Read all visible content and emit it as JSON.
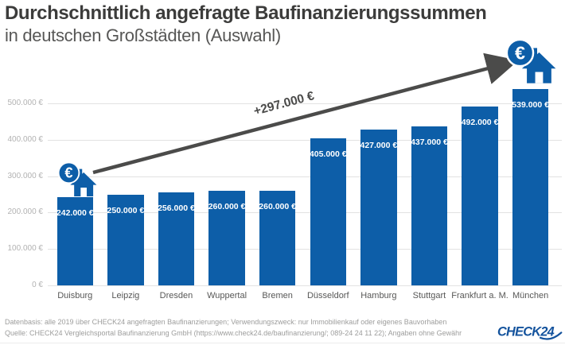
{
  "header": {
    "title": "Durchschnittlich angefragte Baufinanzierungssummen",
    "subtitle": "in deutschen Großstädten (Auswahl)"
  },
  "annotation": {
    "delta_label": "+297.000 €"
  },
  "chart_data": {
    "type": "bar",
    "title": "Durchschnittlich angefragte Baufinanzierungssummen in deutschen Großstädten (Auswahl)",
    "categories": [
      "Duisburg",
      "Leipzig",
      "Dresden",
      "Wuppertal",
      "Bremen",
      "Düsseldorf",
      "Hamburg",
      "Stuttgart",
      "Frankfurt a. M.",
      "München"
    ],
    "values": [
      242000,
      250000,
      256000,
      260000,
      260000,
      405000,
      427000,
      437000,
      492000,
      539000
    ],
    "value_labels": [
      "242.000 €",
      "250.000 €",
      "256.000 €",
      "260.000 €",
      "260.000 €",
      "405.000 €",
      "427.000 €",
      "437.000 €",
      "492.000 €",
      "539.000 €"
    ],
    "y_ticks": [
      "500.000 €",
      "400.000 €",
      "300.000 €",
      "200.000 €",
      "100.000 €",
      "0 €"
    ],
    "y_tick_values": [
      500000,
      400000,
      300000,
      200000,
      100000,
      0
    ],
    "ylim": [
      0,
      550000
    ],
    "xlabel": "",
    "ylabel": "",
    "grid": true,
    "legend": "none",
    "bar_color": "#0d5ea8",
    "annotation_between_first_and_last": "+297.000 €"
  },
  "icons": {
    "euro_symbol": "€",
    "small_icon": "euro-coin-with-house",
    "large_icon": "euro-coin-with-house"
  },
  "footer": {
    "line1": "Datenbasis: alle 2019 über CHECK24 angefragten Baufinanzierungen; Verwendungszweck: nur Immobilienkauf oder eigenes Bauvorhaben",
    "line2": "Quelle: CHECK24 Vergleichsportal Baufinanzierung GmbH (https://www.check24.de/baufinanzierung/; 089-24 24 11 22); Angaben ohne Gewähr",
    "logo_text": "CHECK24"
  },
  "colors": {
    "brand_blue": "#0d5ea8",
    "title_gray": "#3c3c3b",
    "subtitle_gray": "#575756",
    "arrow_gray": "#4b4b4a",
    "axis_tick_gray": "#b2b2b2",
    "gridline_gray": "#e2e2e2",
    "footer_gray": "#9d9d9c",
    "bar_label_white": "#ffffff"
  }
}
